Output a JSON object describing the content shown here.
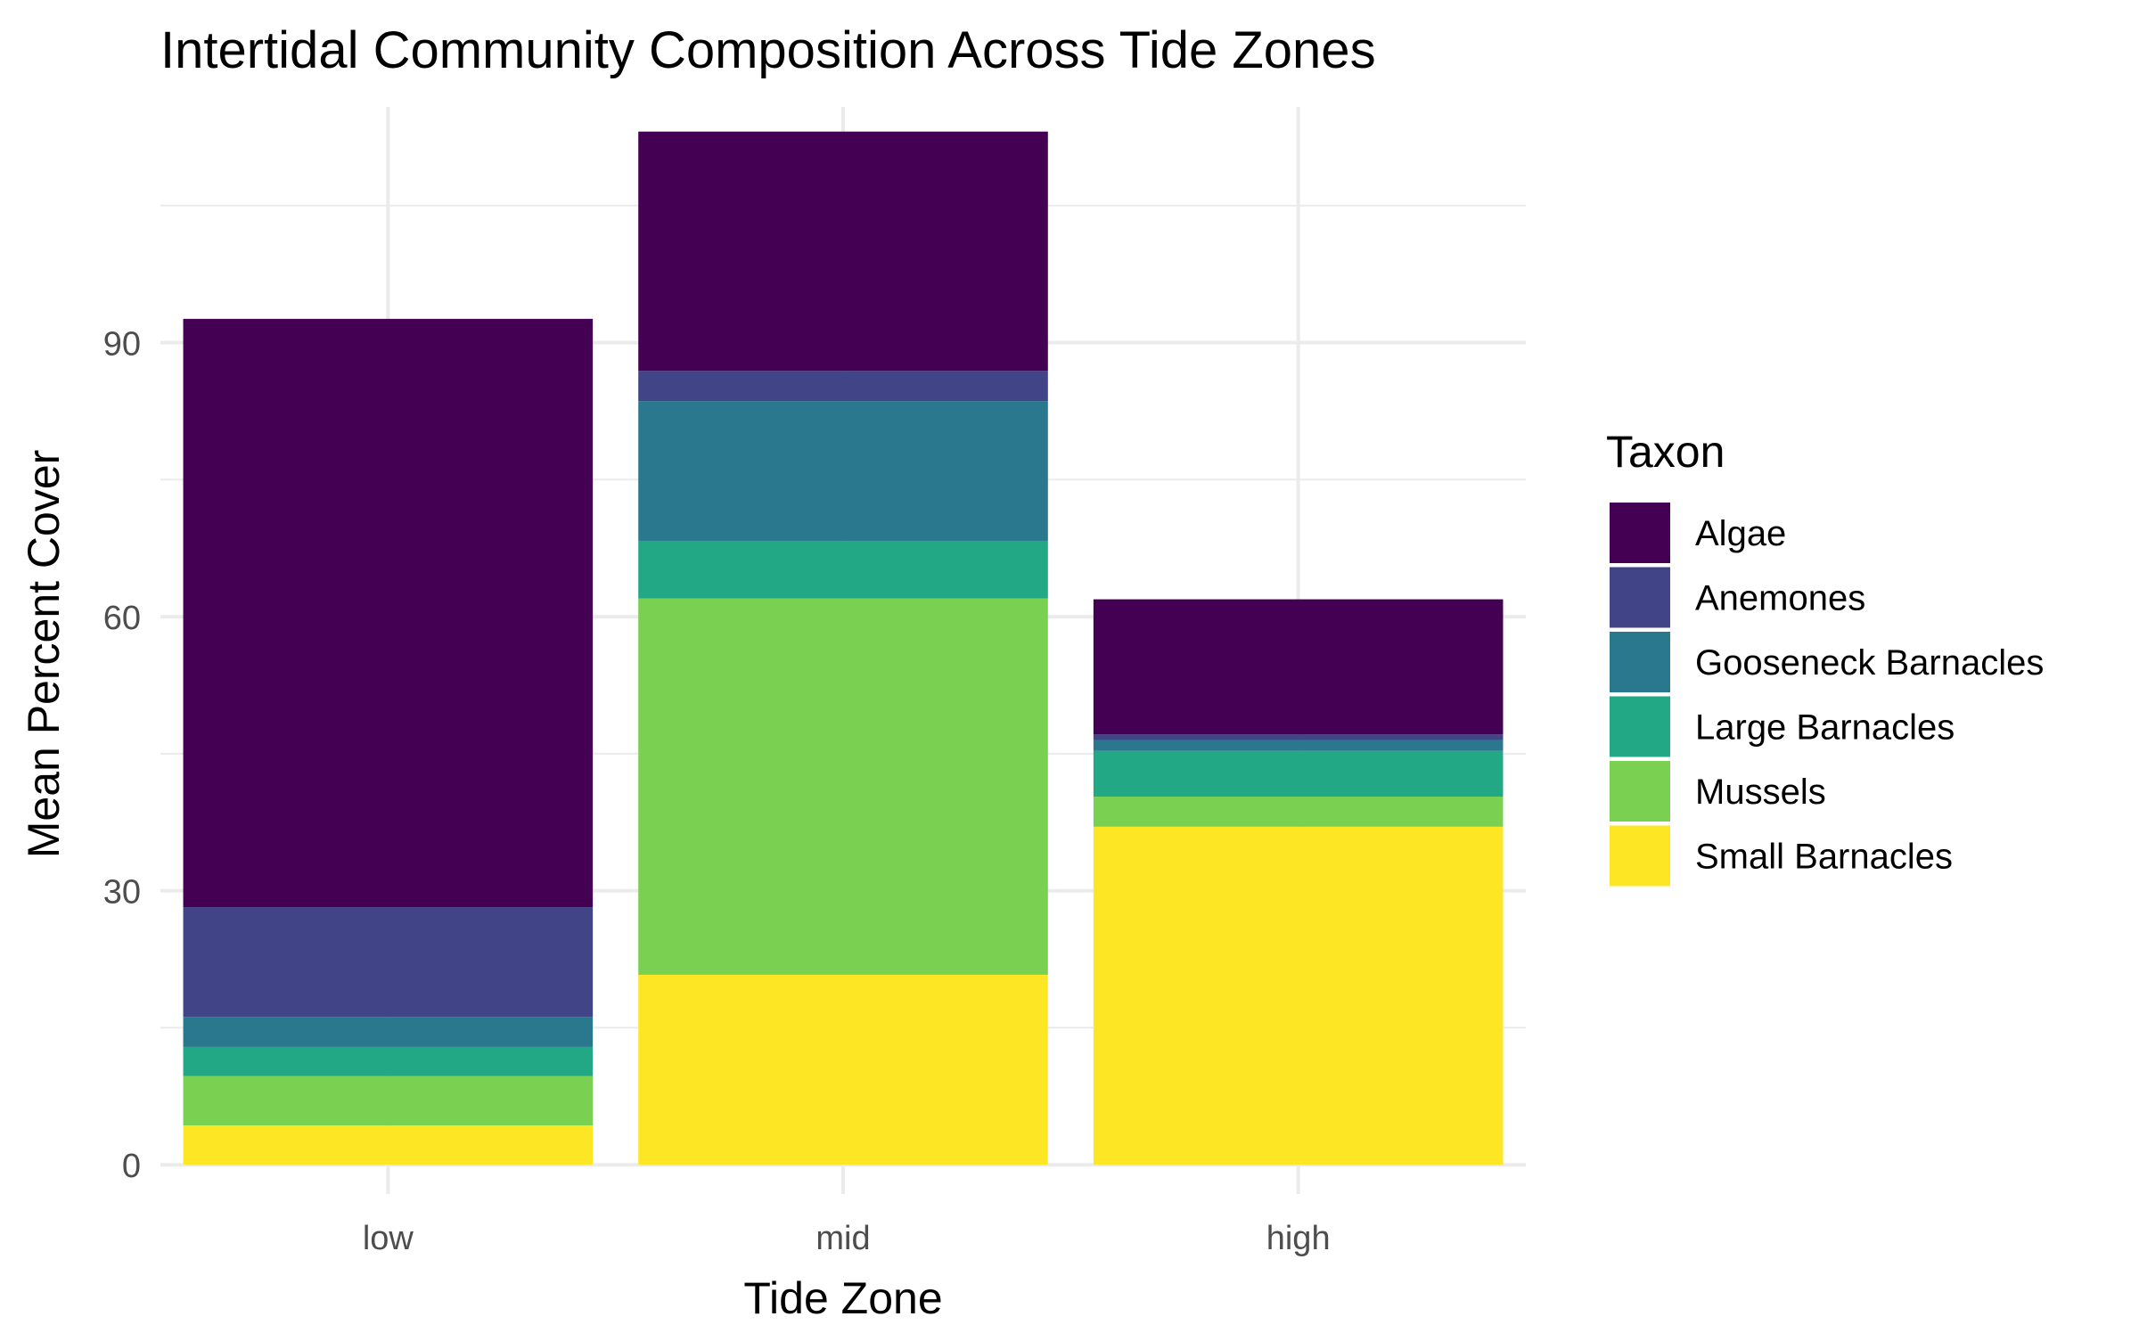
{
  "chart_data": {
    "type": "bar",
    "stacked": true,
    "title": "Intertidal Community Composition Across Tide Zones",
    "xlabel": "Tide Zone",
    "ylabel": "Mean Percent Cover",
    "categories": [
      "low",
      "mid",
      "high"
    ],
    "yticks": [
      0,
      30,
      60,
      90
    ],
    "ylim": [
      -3.2,
      115.8
    ],
    "grid": true,
    "legend": {
      "title": "Taxon",
      "position": "right",
      "entries": [
        "Algae",
        "Anemones",
        "Gooseneck Barnacles",
        "Large Barnacles",
        "Mussels",
        "Small Barnacles"
      ]
    },
    "series": [
      {
        "name": "Small Barnacles",
        "color": "#FDE725",
        "values": [
          4.3,
          20.8,
          37.0
        ]
      },
      {
        "name": "Mussels",
        "color": "#7AD151",
        "values": [
          5.4,
          41.2,
          3.3
        ]
      },
      {
        "name": "Large Barnacles",
        "color": "#22A884",
        "values": [
          3.2,
          6.3,
          5.0
        ]
      },
      {
        "name": "Gooseneck Barnacles",
        "color": "#2A788E",
        "values": [
          3.3,
          15.3,
          1.2
        ]
      },
      {
        "name": "Anemones",
        "color": "#414487",
        "values": [
          12.0,
          3.3,
          0.6
        ]
      },
      {
        "name": "Algae",
        "color": "#440154",
        "values": [
          64.4,
          26.2,
          14.8
        ]
      }
    ]
  }
}
